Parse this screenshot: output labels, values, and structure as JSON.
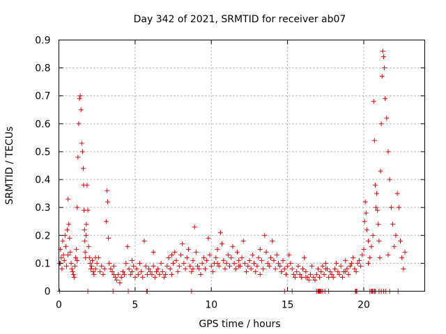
{
  "chart_data": {
    "type": "scatter",
    "title": "Day 342 of 2021, SRMTID for receiver ab07",
    "xlabel": "GPS time / hours",
    "ylabel": "SRMTID / TECUs",
    "xlim": [
      0,
      24
    ],
    "ylim": [
      0,
      0.9
    ],
    "xticks": [
      0,
      5,
      10,
      15,
      20
    ],
    "xtick_labels": [
      "0",
      "5",
      "10",
      "15",
      "20"
    ],
    "yticks": [
      0,
      0.1,
      0.2,
      0.3,
      0.4,
      0.5,
      0.6,
      0.7,
      0.8,
      0.9
    ],
    "ytick_labels": [
      "0",
      "0.1",
      "0.2",
      "0.3",
      "0.4",
      "0.5",
      "0.6",
      "0.7",
      "0.8",
      "0.9"
    ],
    "grid": true,
    "marker": "+",
    "color": "#e00000",
    "series": [
      {
        "name": "SRMTID",
        "x": [
          0.05,
          0.1,
          0.15,
          0.2,
          0.25,
          0.3,
          0.35,
          0.4,
          0.45,
          0.5,
          0.55,
          0.6,
          0.65,
          0.7,
          0.75,
          0.8,
          0.85,
          0.9,
          0.95,
          1.0,
          1.05,
          1.1,
          1.15,
          1.2,
          1.25,
          1.3,
          1.35,
          1.4,
          1.45,
          1.5,
          1.55,
          1.6,
          1.62,
          1.65,
          1.68,
          1.7,
          1.72,
          1.75,
          1.78,
          1.8,
          1.85,
          1.9,
          1.95,
          2.0,
          2.05,
          2.1,
          2.15,
          2.2,
          2.25,
          2.3,
          2.4,
          2.5,
          2.6,
          2.7,
          2.8,
          2.9,
          3.0,
          3.1,
          3.15,
          3.2,
          3.25,
          3.3,
          3.4,
          3.5,
          3.6,
          3.7,
          3.8,
          3.9,
          4.0,
          4.1,
          4.2,
          4.3,
          4.4,
          4.5,
          4.6,
          4.7,
          4.8,
          4.9,
          5.0,
          5.1,
          5.2,
          5.3,
          5.4,
          5.5,
          5.6,
          5.7,
          5.8,
          5.9,
          6.0,
          6.1,
          6.2,
          6.3,
          6.4,
          6.5,
          6.6,
          6.7,
          6.8,
          6.9,
          7.0,
          7.1,
          7.2,
          7.3,
          7.4,
          7.5,
          7.6,
          7.7,
          7.8,
          7.9,
          8.0,
          8.1,
          8.2,
          8.3,
          8.4,
          8.5,
          8.6,
          8.7,
          8.8,
          8.9,
          9.0,
          9.1,
          9.2,
          9.3,
          9.4,
          9.5,
          9.6,
          9.7,
          9.8,
          9.9,
          10.0,
          10.1,
          10.2,
          10.3,
          10.4,
          10.5,
          10.6,
          10.7,
          10.8,
          10.9,
          11.0,
          11.1,
          11.2,
          11.3,
          11.4,
          11.5,
          11.6,
          11.7,
          11.8,
          11.9,
          12.0,
          12.1,
          12.2,
          12.3,
          12.4,
          12.5,
          12.6,
          12.7,
          12.8,
          12.9,
          13.0,
          13.1,
          13.2,
          13.3,
          13.4,
          13.5,
          13.6,
          13.7,
          13.8,
          13.9,
          14.0,
          14.1,
          14.2,
          14.3,
          14.4,
          14.5,
          14.6,
          14.7,
          14.8,
          14.9,
          15.0,
          15.1,
          15.2,
          15.3,
          15.4,
          15.5,
          15.6,
          15.7,
          15.8,
          15.9,
          16.0,
          16.1,
          16.2,
          16.3,
          16.4,
          16.5,
          16.6,
          16.7,
          16.8,
          16.9,
          17.0,
          17.1,
          17.2,
          17.3,
          17.4,
          17.5,
          17.6,
          17.7,
          17.8,
          17.9,
          18.0,
          18.1,
          18.2,
          18.3,
          18.4,
          18.5,
          18.6,
          18.7,
          18.8,
          18.9,
          19.0,
          19.1,
          19.2,
          19.3,
          19.4,
          19.5,
          19.6,
          19.7,
          19.8,
          19.9,
          20.0,
          20.05,
          20.1,
          20.15,
          20.2,
          20.3,
          20.4,
          20.5,
          20.6,
          20.65,
          20.7,
          20.75,
          20.8,
          20.85,
          20.9,
          20.95,
          21.0,
          21.05,
          21.1,
          21.15,
          21.2,
          21.25,
          21.3,
          21.35,
          21.4,
          21.5,
          21.6,
          21.7,
          21.8,
          21.9,
          22.0,
          22.1,
          22.2,
          22.3,
          22.4,
          22.5,
          22.6,
          22.7,
          0.1,
          0.6,
          1.2,
          2.4,
          3.6,
          4.8,
          6.2,
          7.4,
          8.8,
          10.4,
          11.8,
          13.2,
          14.6,
          16.2,
          17.5,
          18.8,
          20.3,
          21.6
        ],
        "y": [
          0.1,
          0.15,
          0.12,
          0.08,
          0.18,
          0.13,
          0.11,
          0.2,
          0.16,
          0.09,
          0.22,
          0.33,
          0.24,
          0.19,
          0.14,
          0.1,
          0.08,
          0.07,
          0.06,
          0.05,
          0.09,
          0.12,
          0.15,
          0.3,
          0.48,
          0.6,
          0.69,
          0.7,
          0.65,
          0.53,
          0.5,
          0.44,
          0.38,
          0.29,
          0.22,
          0.18,
          0.14,
          0.12,
          0.2,
          0.24,
          0.38,
          0.29,
          0.16,
          0.12,
          0.1,
          0.08,
          0.09,
          0.11,
          0.07,
          0.06,
          0.08,
          0.1,
          0.12,
          0.07,
          0.09,
          0.06,
          0.08,
          0.25,
          0.36,
          0.32,
          0.19,
          0.1,
          0.08,
          0.07,
          0.06,
          0.05,
          0.04,
          0.06,
          0.03,
          0.05,
          0.07,
          0.06,
          0.1,
          0.16,
          0.08,
          0.06,
          0.07,
          0.09,
          0.05,
          0.08,
          0.06,
          0.1,
          0.07,
          0.05,
          0.18,
          0.09,
          0.06,
          0.08,
          0.07,
          0.06,
          0.09,
          0.05,
          0.07,
          0.08,
          0.06,
          0.1,
          0.07,
          0.05,
          0.06,
          0.09,
          0.12,
          0.08,
          0.06,
          0.1,
          0.14,
          0.11,
          0.07,
          0.09,
          0.13,
          0.17,
          0.1,
          0.08,
          0.12,
          0.15,
          0.09,
          0.07,
          0.11,
          0.23,
          0.14,
          0.09,
          0.08,
          0.06,
          0.1,
          0.12,
          0.08,
          0.11,
          0.19,
          0.13,
          0.09,
          0.07,
          0.1,
          0.12,
          0.15,
          0.09,
          0.21,
          0.17,
          0.11,
          0.08,
          0.1,
          0.13,
          0.09,
          0.12,
          0.16,
          0.1,
          0.08,
          0.14,
          0.11,
          0.09,
          0.12,
          0.18,
          0.1,
          0.07,
          0.09,
          0.11,
          0.08,
          0.13,
          0.1,
          0.07,
          0.09,
          0.12,
          0.15,
          0.11,
          0.08,
          0.2,
          0.14,
          0.1,
          0.09,
          0.12,
          0.18,
          0.11,
          0.08,
          0.13,
          0.1,
          0.09,
          0.07,
          0.11,
          0.08,
          0.06,
          0.09,
          0.13,
          0.1,
          0.08,
          0.06,
          0.05,
          0.07,
          0.09,
          0.06,
          0.05,
          0.08,
          0.12,
          0.07,
          0.05,
          0.04,
          0.06,
          0.09,
          0.05,
          0.04,
          0.06,
          0.08,
          0.05,
          0.07,
          0.09,
          0.06,
          0.1,
          0.08,
          0.05,
          0.07,
          0.06,
          0.05,
          0.08,
          0.1,
          0.07,
          0.06,
          0.09,
          0.05,
          0.07,
          0.11,
          0.08,
          0.06,
          0.09,
          0.1,
          0.12,
          0.08,
          0.07,
          0.1,
          0.11,
          0.09,
          0.13,
          0.15,
          0.25,
          0.32,
          0.28,
          0.22,
          0.18,
          0.12,
          0.16,
          0.2,
          0.68,
          0.54,
          0.38,
          0.3,
          0.35,
          0.29,
          0.24,
          0.18,
          0.12,
          0.43,
          0.6,
          0.77,
          0.86,
          0.84,
          0.8,
          0.69,
          0.62,
          0.5,
          0.4,
          0.3,
          0.24,
          0.16,
          0.2,
          0.35,
          0.3,
          0.18,
          0.12,
          0.08,
          0.14,
          0.1,
          0.13,
          0.11,
          0.12,
          0.09,
          0.11,
          0.14,
          0.13,
          0.08,
          0.1,
          0.09,
          0.06,
          0.07,
          0.05,
          0.08,
          0.07,
          0.1,
          0.13
        ]
      }
    ],
    "zero_markers_x": [
      0.05,
      1.9,
      3.55,
      4.55,
      5.75,
      5.8,
      8.7,
      14.8,
      15.3,
      16.9,
      17.0,
      17.05,
      17.1,
      17.15,
      17.2,
      17.3,
      17.45,
      17.7,
      19.45,
      19.5,
      19.55,
      20.4,
      20.5,
      20.55,
      20.6,
      20.7,
      20.75,
      21.0,
      21.15,
      21.3,
      21.45,
      21.7,
      22.25
    ]
  }
}
